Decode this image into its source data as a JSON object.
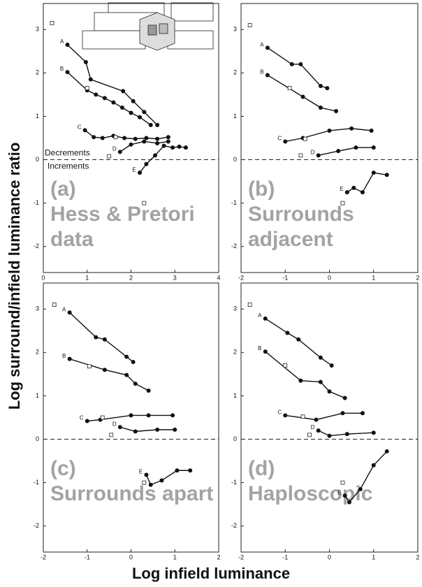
{
  "ylabel": "Log surround/infield luminance ratio",
  "xlabel": "Log infield luminance",
  "chart_data": [
    {
      "type": "line",
      "label": "(a)",
      "title": [
        "Hess & Pretori",
        "data"
      ],
      "color": "#111",
      "xlim": [
        0,
        4
      ],
      "xticks": [
        0,
        1,
        2,
        3,
        4
      ],
      "ylim": [
        -2.6,
        3.6
      ],
      "yticks": [
        -2,
        -1,
        0,
        1,
        2,
        3
      ],
      "reference_line": 0,
      "annotations": [
        "Decrements",
        "Increments"
      ],
      "series": [
        {
          "name": "A",
          "x": [
            0.55,
            0.97,
            1.08,
            1.82,
            2.05,
            2.3,
            2.6
          ],
          "values": [
            2.65,
            2.25,
            1.85,
            1.58,
            1.35,
            1.1,
            0.8
          ]
        },
        {
          "name": "B",
          "x": [
            0.55,
            1.0,
            1.2,
            1.4,
            1.6,
            1.8,
            2.0,
            2.2,
            2.45
          ],
          "values": [
            2.02,
            1.6,
            1.5,
            1.42,
            1.32,
            1.2,
            1.08,
            0.98,
            0.8
          ]
        },
        {
          "name": "C",
          "x": [
            0.95,
            1.15,
            1.35,
            1.6,
            1.85,
            2.1,
            2.35,
            2.6,
            2.85
          ],
          "values": [
            0.68,
            0.52,
            0.5,
            0.55,
            0.5,
            0.48,
            0.5,
            0.48,
            0.52
          ]
        },
        {
          "name": "D",
          "x": [
            1.75,
            2.0,
            2.3,
            2.6,
            2.85
          ],
          "values": [
            0.18,
            0.35,
            0.42,
            0.38,
            0.42
          ]
        },
        {
          "name": "E",
          "x": [
            2.2,
            2.35,
            2.55,
            2.75,
            2.95,
            3.1,
            3.25
          ],
          "values": [
            -0.3,
            -0.1,
            0.1,
            0.32,
            0.28,
            0.3,
            0.28
          ]
        }
      ],
      "markers": {
        "x": [
          0.2,
          1.0,
          1.65,
          1.5,
          2.3
        ],
        "y": [
          3.15,
          1.65,
          0.52,
          0.08,
          -1.0
        ]
      }
    },
    {
      "type": "line",
      "label": "(b)",
      "title": [
        "Surrounds",
        "adjacent"
      ],
      "color": "#111",
      "xlim": [
        -2,
        2
      ],
      "xticks": [
        -2,
        -1,
        0,
        1,
        2
      ],
      "ylim": [
        -2.6,
        3.6
      ],
      "yticks": [
        -2,
        -1,
        0,
        1,
        2,
        3
      ],
      "reference_line": 0,
      "series": [
        {
          "name": "A",
          "x": [
            -1.4,
            -0.85,
            -0.65,
            -0.2,
            -0.05
          ],
          "values": [
            2.58,
            2.2,
            2.2,
            1.7,
            1.65
          ]
        },
        {
          "name": "B",
          "x": [
            -1.4,
            -0.6,
            -0.2,
            0.15
          ],
          "values": [
            1.95,
            1.45,
            1.2,
            1.12
          ]
        },
        {
          "name": "C",
          "x": [
            -1.0,
            -0.6,
            0.0,
            0.5,
            0.95
          ],
          "values": [
            0.42,
            0.5,
            0.67,
            0.72,
            0.67
          ]
        },
        {
          "name": "D",
          "x": [
            -0.25,
            0.2,
            0.6,
            1.0
          ],
          "values": [
            0.1,
            0.2,
            0.28,
            0.28
          ]
        },
        {
          "name": "E",
          "x": [
            0.4,
            0.55,
            0.75,
            1.0,
            1.3
          ],
          "values": [
            -0.75,
            -0.65,
            -0.75,
            -0.3,
            -0.35
          ]
        }
      ],
      "markers": {
        "x": [
          -1.8,
          -0.9,
          -0.55,
          -0.65,
          0.3
        ],
        "y": [
          3.1,
          1.65,
          0.48,
          0.1,
          -1.0
        ]
      }
    },
    {
      "type": "line",
      "label": "(c)",
      "title": [
        "Surrounds apart"
      ],
      "color": "#111",
      "xlim": [
        -2,
        2
      ],
      "xticks": [
        -2,
        -1,
        0,
        1,
        2
      ],
      "ylim": [
        -2.6,
        3.6
      ],
      "yticks": [
        -2,
        -1,
        0,
        1,
        2,
        3
      ],
      "reference_line": 0,
      "series": [
        {
          "name": "A",
          "x": [
            -1.4,
            -0.8,
            -0.6,
            -0.1,
            0.05
          ],
          "values": [
            2.92,
            2.35,
            2.3,
            1.9,
            1.78
          ]
        },
        {
          "name": "B",
          "x": [
            -1.4,
            -0.6,
            -0.1,
            0.1,
            0.4
          ],
          "values": [
            1.85,
            1.6,
            1.48,
            1.28,
            1.12
          ]
        },
        {
          "name": "C",
          "x": [
            -1.0,
            -0.7,
            0.0,
            0.4,
            0.95
          ],
          "values": [
            0.42,
            0.45,
            0.55,
            0.55,
            0.55
          ]
        },
        {
          "name": "D",
          "x": [
            -0.25,
            0.1,
            0.6,
            1.0
          ],
          "values": [
            0.28,
            0.18,
            0.22,
            0.22
          ]
        },
        {
          "name": "E",
          "x": [
            0.35,
            0.45,
            0.7,
            1.05,
            1.35
          ],
          "values": [
            -0.82,
            -1.05,
            -0.95,
            -0.72,
            -0.72
          ]
        }
      ],
      "markers": {
        "x": [
          -1.75,
          -0.95,
          -0.65,
          -0.45,
          0.3
        ],
        "y": [
          3.1,
          1.68,
          0.5,
          0.1,
          -1.0
        ]
      }
    },
    {
      "type": "line",
      "label": "(d)",
      "title": [
        "Haploscopic"
      ],
      "color": "#111",
      "xlim": [
        -2,
        2
      ],
      "xticks": [
        -2,
        -1,
        0,
        1,
        2
      ],
      "ylim": [
        -2.6,
        3.6
      ],
      "yticks": [
        -2,
        -1,
        0,
        1,
        2,
        3
      ],
      "reference_line": 0,
      "series": [
        {
          "name": "A",
          "x": [
            -1.45,
            -0.95,
            -0.7,
            -0.2,
            0.05
          ],
          "values": [
            2.78,
            2.45,
            2.3,
            1.88,
            1.7
          ]
        },
        {
          "name": "B",
          "x": [
            -1.45,
            -0.65,
            -0.2,
            0.0,
            0.35
          ],
          "values": [
            2.02,
            1.35,
            1.32,
            1.1,
            0.95
          ]
        },
        {
          "name": "C",
          "x": [
            -1.0,
            -0.3,
            0.3,
            0.75
          ],
          "values": [
            0.55,
            0.45,
            0.6,
            0.6
          ]
        },
        {
          "name": "D",
          "x": [
            -0.25,
            0.0,
            0.4,
            1.0
          ],
          "values": [
            0.2,
            0.08,
            0.12,
            0.15
          ]
        },
        {
          "name": "E",
          "x": [
            0.35,
            0.45,
            0.7,
            1.0,
            1.3
          ],
          "values": [
            -1.3,
            -1.45,
            -1.15,
            -0.6,
            -0.28
          ]
        }
      ],
      "markers": {
        "x": [
          -1.8,
          -1.0,
          -0.6,
          -0.45,
          0.3
        ],
        "y": [
          3.1,
          1.7,
          0.52,
          0.1,
          -1.0
        ]
      }
    }
  ]
}
